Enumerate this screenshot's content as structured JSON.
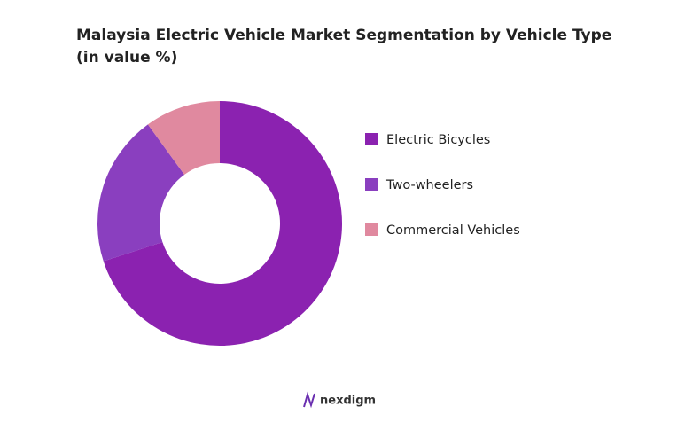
{
  "chart_data": {
    "type": "donut",
    "title": "Malaysia Electric Vehicle Market Segmentation by Vehicle Type (in value %)",
    "categories": [
      "Electric Bicycles",
      "Two-wheelers",
      "Commercial Vehicles"
    ],
    "values": [
      70,
      20,
      10
    ],
    "colors": [
      "#8b22b0",
      "#8a3fbf",
      "#e0899f"
    ],
    "legend": "right"
  },
  "brand": "nexdigm"
}
